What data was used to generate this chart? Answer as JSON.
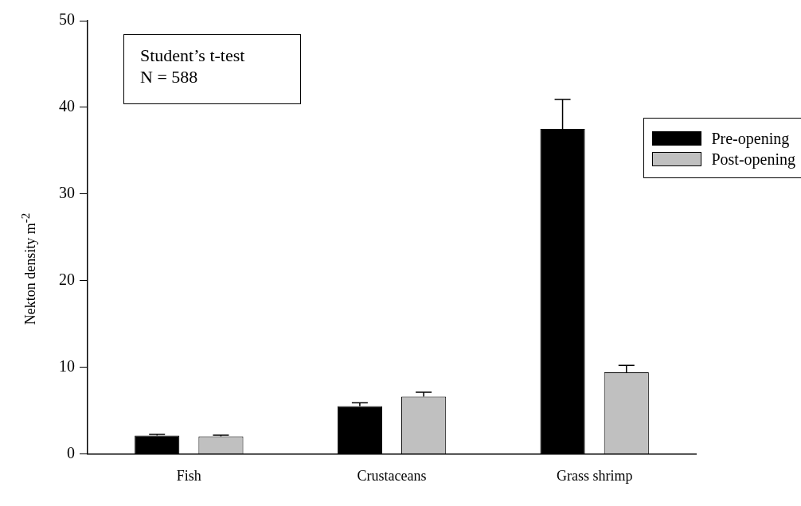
{
  "chart_data": {
    "type": "bar",
    "ylabel": "Nekton density m$^{-2}$",
    "categories": [
      "Fish",
      "Crustaceans",
      "Grass shrimp"
    ],
    "series": [
      {
        "name": "Pre-opening",
        "color": "#000000",
        "values": [
          2.1,
          5.5,
          37.5
        ],
        "errors": [
          0.15,
          0.4,
          3.4
        ]
      },
      {
        "name": "Post-opening",
        "color": "#c0c0c0",
        "values": [
          2.0,
          6.6,
          9.4
        ],
        "errors": [
          0.15,
          0.5,
          0.8
        ]
      }
    ],
    "ylim": [
      0,
      50
    ],
    "yticks": [
      0,
      10,
      20,
      30,
      40,
      50
    ],
    "grid": false,
    "legend": "right",
    "annotations": [
      "Student’s t-test\nN = 588"
    ]
  }
}
